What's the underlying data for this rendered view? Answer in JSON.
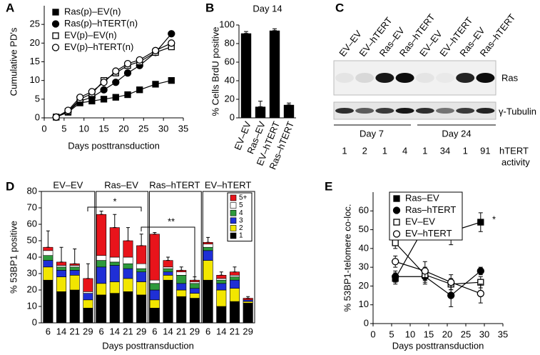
{
  "chart_data": [
    {
      "type": "line",
      "panel": "A",
      "ylabel": "Cumulative PD's",
      "xlabel": "Days posttransduction",
      "x": [
        3,
        6,
        9,
        12,
        15,
        18,
        21,
        24,
        28,
        32
      ],
      "xlim": [
        0,
        35
      ],
      "xticks": [
        0,
        5,
        10,
        15,
        20,
        25,
        30,
        35
      ],
      "ylim": [
        0,
        30
      ],
      "yticks": [
        0,
        5,
        10,
        15,
        20,
        25
      ],
      "legend": "upper left",
      "legend_frame": false,
      "series": [
        {
          "name": "Ras(p)–EV(n)",
          "color": "#000000",
          "marker": "square",
          "filled": true,
          "values": [
            0.2,
            1.5,
            4,
            4.5,
            5,
            5.5,
            6.2,
            7.5,
            9,
            10
          ]
        },
        {
          "name": "Ras(p)–hTERT(n)",
          "color": "#000000",
          "marker": "circle",
          "filled": true,
          "values": [
            0.2,
            1.7,
            4.5,
            5.5,
            7.5,
            9.5,
            12,
            14,
            17.5,
            22.5
          ]
        },
        {
          "name": "EV(p)–EV(n)",
          "color": "#000000",
          "marker": "square",
          "filled": false,
          "values": [
            0.2,
            1.7,
            5,
            6.5,
            10,
            12,
            14,
            15,
            17.5,
            19
          ]
        },
        {
          "name": "EV(p)–hTERT(n)",
          "color": "#000000",
          "marker": "circle",
          "filled": false,
          "values": [
            0.2,
            2,
            5.5,
            7,
            9.5,
            12.5,
            14.5,
            15.5,
            18,
            20
          ]
        }
      ]
    },
    {
      "type": "bar",
      "panel": "B",
      "title": "Day 14",
      "ylabel": "% Cells BrdU positive",
      "color": "#000000",
      "categories": [
        "EV–EV",
        "Ras–EV",
        "EV–hTERT",
        "Ras–hTERT"
      ],
      "values": [
        91,
        12,
        94,
        14
      ],
      "errors": [
        2,
        6,
        2,
        2
      ],
      "ylim": [
        0,
        100
      ],
      "yticks": [
        0,
        20,
        40,
        60,
        80,
        100
      ]
    },
    {
      "type": "stacked-bar",
      "panel": "D",
      "ylabel": "% 53BP1 positive",
      "xlabel": "Days posttransduction",
      "groups": [
        "EV–EV",
        "Ras–EV",
        "Ras–hTERT",
        "EV–hTERT"
      ],
      "categories": [
        "6",
        "14",
        "21",
        "29",
        "6",
        "14",
        "21",
        "29",
        "6",
        "14",
        "21",
        "29",
        "6",
        "14",
        "21",
        "29"
      ],
      "ylim": [
        0,
        80
      ],
      "yticks": [
        0,
        10,
        20,
        30,
        40,
        50,
        60,
        70,
        80
      ],
      "legend": "upper right",
      "annotations": [
        "*",
        "**"
      ],
      "series": [
        {
          "name": "1",
          "color": "#000000",
          "values": [
            26,
            19,
            20,
            9,
            17,
            18,
            19,
            17,
            9,
            26,
            16,
            15,
            26,
            10,
            13,
            12
          ]
        },
        {
          "name": "2",
          "color": "#f2e600",
          "values": [
            8,
            9,
            9,
            5,
            7,
            7,
            8,
            8,
            5,
            3,
            4,
            3,
            12,
            10,
            8,
            1
          ]
        },
        {
          "name": "3",
          "color": "#1f2fd6",
          "values": [
            4,
            4,
            3,
            4,
            10,
            10,
            6,
            6,
            6,
            2,
            4,
            3,
            6,
            4,
            5,
            1
          ]
        },
        {
          "name": "4",
          "color": "#2e9a3c",
          "values": [
            3,
            2,
            2,
            0,
            4,
            2,
            3,
            2,
            4,
            2,
            5,
            3,
            2,
            2,
            2,
            0
          ]
        },
        {
          "name": "5",
          "color": "#ffffff",
          "values": [
            3,
            1,
            1,
            1,
            3,
            3,
            4,
            3,
            2,
            1,
            2,
            1,
            2,
            1,
            1,
            0
          ]
        },
        {
          "name": "5+",
          "color": "#e8141b",
          "values": [
            2,
            2,
            1,
            8,
            25,
            18,
            10,
            11,
            28,
            4,
            1,
            1,
            1,
            2,
            2,
            1
          ]
        }
      ],
      "errors": [
        10,
        9,
        9,
        9,
        2,
        8,
        8,
        7,
        1,
        2,
        2,
        2,
        3,
        2,
        3,
        1
      ]
    },
    {
      "type": "line",
      "panel": "E",
      "ylabel": "% 53BP1-telomere co-loc.",
      "xlabel": "Days posttransduction",
      "x": [
        6,
        14,
        21,
        29
      ],
      "xlim": [
        0,
        35
      ],
      "xticks": [
        0,
        5,
        10,
        15,
        20,
        25,
        30,
        35
      ],
      "ylim": [
        0,
        70
      ],
      "yticks": [
        0,
        10,
        20,
        30,
        40,
        50,
        60
      ],
      "legend": "upper center",
      "legend_frame": true,
      "annotations": [
        "*"
      ],
      "series": [
        {
          "name": "Ras–EV",
          "color": "#000000",
          "marker": "square",
          "filled": true,
          "values": [
            24,
            52,
            49,
            54
          ],
          "errors": [
            3,
            3,
            7,
            5
          ]
        },
        {
          "name": "Ras–hTERT",
          "color": "#000000",
          "marker": "circle",
          "filled": true,
          "values": [
            25,
            25,
            15,
            28
          ],
          "errors": [
            3,
            4,
            6,
            2
          ]
        },
        {
          "name": "EV–EV",
          "color": "#000000",
          "marker": "square",
          "filled": false,
          "values": [
            43,
            26,
            21,
            22
          ],
          "errors": [
            3,
            4,
            3,
            3
          ]
        },
        {
          "name": "EV–hTERT",
          "color": "#000000",
          "marker": "circle",
          "filled": false,
          "values": [
            33,
            28,
            22,
            16
          ],
          "errors": [
            3,
            5,
            4,
            5
          ]
        }
      ]
    }
  ],
  "blot": {
    "panel": "C",
    "lanes": [
      "EV–EV",
      "EV–hTERT",
      "Ras–EV",
      "Ras–hTERT",
      "EV–EV",
      "EV–hTERT",
      "Ras–EV",
      "Ras–hTERT"
    ],
    "bands": [
      "Ras",
      "γ-Tubulin"
    ],
    "days": [
      "Day 7",
      "Day 24"
    ],
    "activity_label": [
      "hTERT",
      "activity"
    ],
    "activity": [
      "1",
      "2",
      "1",
      "4",
      "1",
      "34",
      "1",
      "91"
    ]
  }
}
